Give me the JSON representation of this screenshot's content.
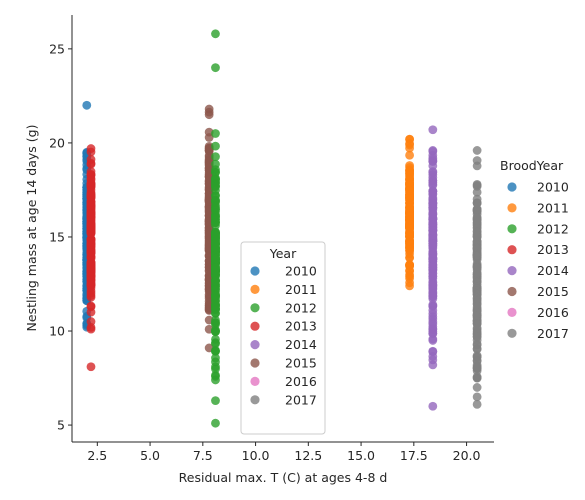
{
  "chart_data": {
    "type": "scatter",
    "xlabel": "Residual max. T (C) at ages 4-8 d",
    "ylabel": "Nestling mass at age 14 days (g)",
    "xlim": [
      1.3,
      21.3
    ],
    "ylim": [
      4.1,
      26.8
    ],
    "x_ticks": [
      "2.5",
      "5.0",
      "7.5",
      "10.0",
      "12.5",
      "15.0",
      "17.5",
      "20.0"
    ],
    "x_tick_values": [
      2.5,
      5.0,
      7.5,
      10.0,
      12.5,
      15.0,
      17.5,
      20.0
    ],
    "y_ticks": [
      "5",
      "10",
      "15",
      "20",
      "25"
    ],
    "y_tick_values": [
      5,
      10,
      15,
      20,
      25
    ],
    "grid": false,
    "inner_legend": {
      "title": "Year",
      "placement": "lower-center",
      "entries": [
        "2010",
        "2011",
        "2012",
        "2013",
        "2014",
        "2015",
        "2016",
        "2017"
      ]
    },
    "outer_legend": {
      "title": "BroodYear",
      "placement": "right",
      "entries": [
        "2010",
        "2011",
        "2012",
        "2013",
        "2014",
        "2015",
        "2016",
        "2017"
      ]
    },
    "series": [
      {
        "name": "2010",
        "color": "#1f77b4",
        "x": 2.0,
        "y_range": [
          10.2,
          19.5
        ],
        "extra_y": [
          22.0,
          10.3,
          11.7,
          19.5
        ]
      },
      {
        "name": "2011",
        "color": "#ff7f0e",
        "x": 17.3,
        "y_range": [
          12.4,
          20.2
        ],
        "extra_y": [
          12.4,
          12.8,
          20.2
        ]
      },
      {
        "name": "2012",
        "color": "#2ca02c",
        "x": 8.1,
        "y_range": [
          7.4,
          20.5
        ],
        "extra_y": [
          25.8,
          24.0,
          5.1,
          6.3,
          7.4,
          8.1,
          20.5
        ]
      },
      {
        "name": "2013",
        "color": "#d62728",
        "x": 2.2,
        "y_range": [
          10.1,
          19.7
        ],
        "extra_y": [
          8.1,
          19.7,
          10.1
        ]
      },
      {
        "name": "2014",
        "color": "#9467bd",
        "x": 18.4,
        "y_range": [
          8.2,
          20.7
        ],
        "extra_y": [
          6.0,
          8.2,
          20.7,
          9.5
        ]
      },
      {
        "name": "2015",
        "color": "#8c564b",
        "x": 7.8,
        "y_range": [
          9.1,
          21.8
        ],
        "extra_y": [
          21.8,
          21.5,
          9.1
        ]
      },
      {
        "name": "2016",
        "color": "#e377c2",
        "x": null,
        "y_range": null,
        "extra_y": []
      },
      {
        "name": "2017",
        "color": "#7f7f7f",
        "x": 20.5,
        "y_range": [
          6.1,
          19.6
        ],
        "extra_y": [
          6.1,
          6.5,
          7.0,
          7.5,
          19.6,
          8.1
        ]
      }
    ]
  }
}
